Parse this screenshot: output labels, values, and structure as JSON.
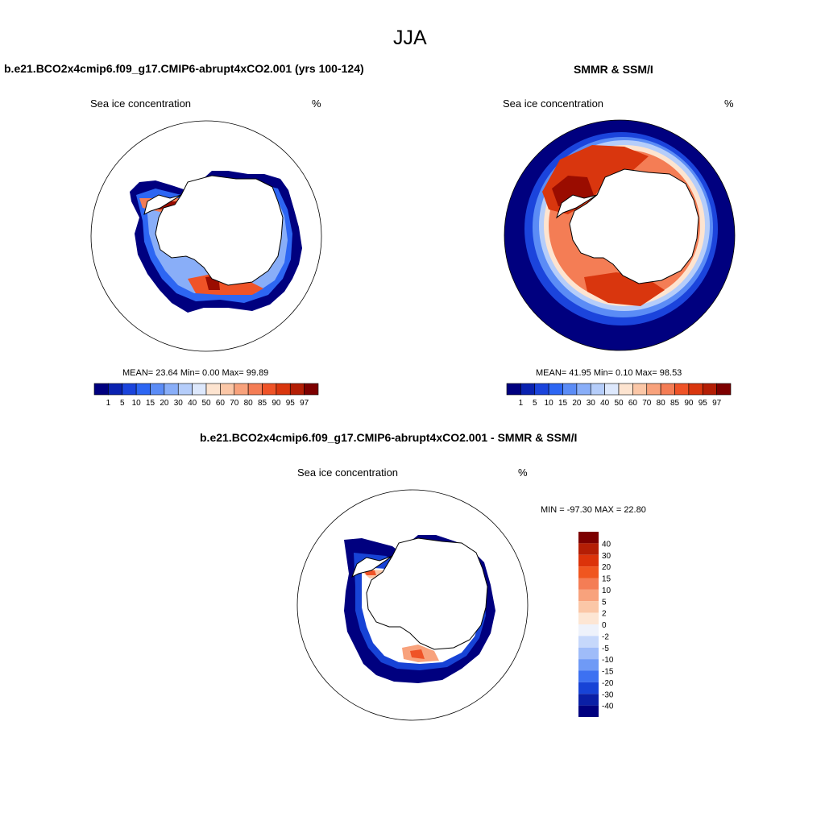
{
  "figure": {
    "title": "JJA"
  },
  "panels": [
    {
      "id": "model",
      "title": "b.e21.BCO2x4cmip6.f09_g17.CMIP6-abrupt4xCO2.001 (yrs 100-124)",
      "left_label": "Sea ice concentration",
      "right_label": "%",
      "stats": "MEAN=  23.64  Min=   0.00  Max=  99.89"
    },
    {
      "id": "obs",
      "title": "SMMR & SSM/I",
      "left_label": "Sea ice concentration",
      "right_label": "%",
      "stats": "MEAN=  41.95  Min=   0.10  Max=  98.53"
    },
    {
      "id": "diff",
      "title": "b.e21.BCO2x4cmip6.f09_g17.CMIP6-abrupt4xCO2.001 - SMMR & SSM/I",
      "left_label": "Sea ice concentration",
      "right_label": "%",
      "stats": "MIN = -97.30 MAX =  22.80"
    }
  ],
  "colorbar_conc": {
    "labels": [
      "1",
      "5",
      "10",
      "15",
      "20",
      "30",
      "40",
      "50",
      "60",
      "70",
      "80",
      "85",
      "90",
      "95",
      "97"
    ],
    "colors": [
      "#00007f",
      "#0a22b0",
      "#1b44dc",
      "#2d66f3",
      "#5b8cf6",
      "#89aef8",
      "#b5cdfa",
      "#dde8fc",
      "#fde4d0",
      "#fbc7a7",
      "#f8a27c",
      "#f47d55",
      "#ef5327",
      "#d9360e",
      "#b41e05",
      "#7d0000"
    ]
  },
  "colorbar_diff": {
    "labels": [
      "40",
      "30",
      "20",
      "15",
      "10",
      "5",
      "2",
      "0",
      "-2",
      "-5",
      "-10",
      "-15",
      "-20",
      "-30",
      "-40"
    ],
    "colors": [
      "#7d0000",
      "#b41e05",
      "#dc330a",
      "#f0561f",
      "#f47d55",
      "#f8a27c",
      "#fbc7a7",
      "#fde6d4",
      "#eef2fb",
      "#c6d8fb",
      "#9fbcf9",
      "#6f9af6",
      "#3d71f1",
      "#1743d6",
      "#0a1fa6",
      "#00007f"
    ]
  },
  "colors": {
    "deep_blue": "#00007f",
    "mid_blue": "#2d66f3",
    "light_blue": "#b5cdfa",
    "orange": "#f47d55",
    "red": "#ef5327",
    "dark_red": "#9a0c00",
    "cream": "#fde4d0"
  }
}
